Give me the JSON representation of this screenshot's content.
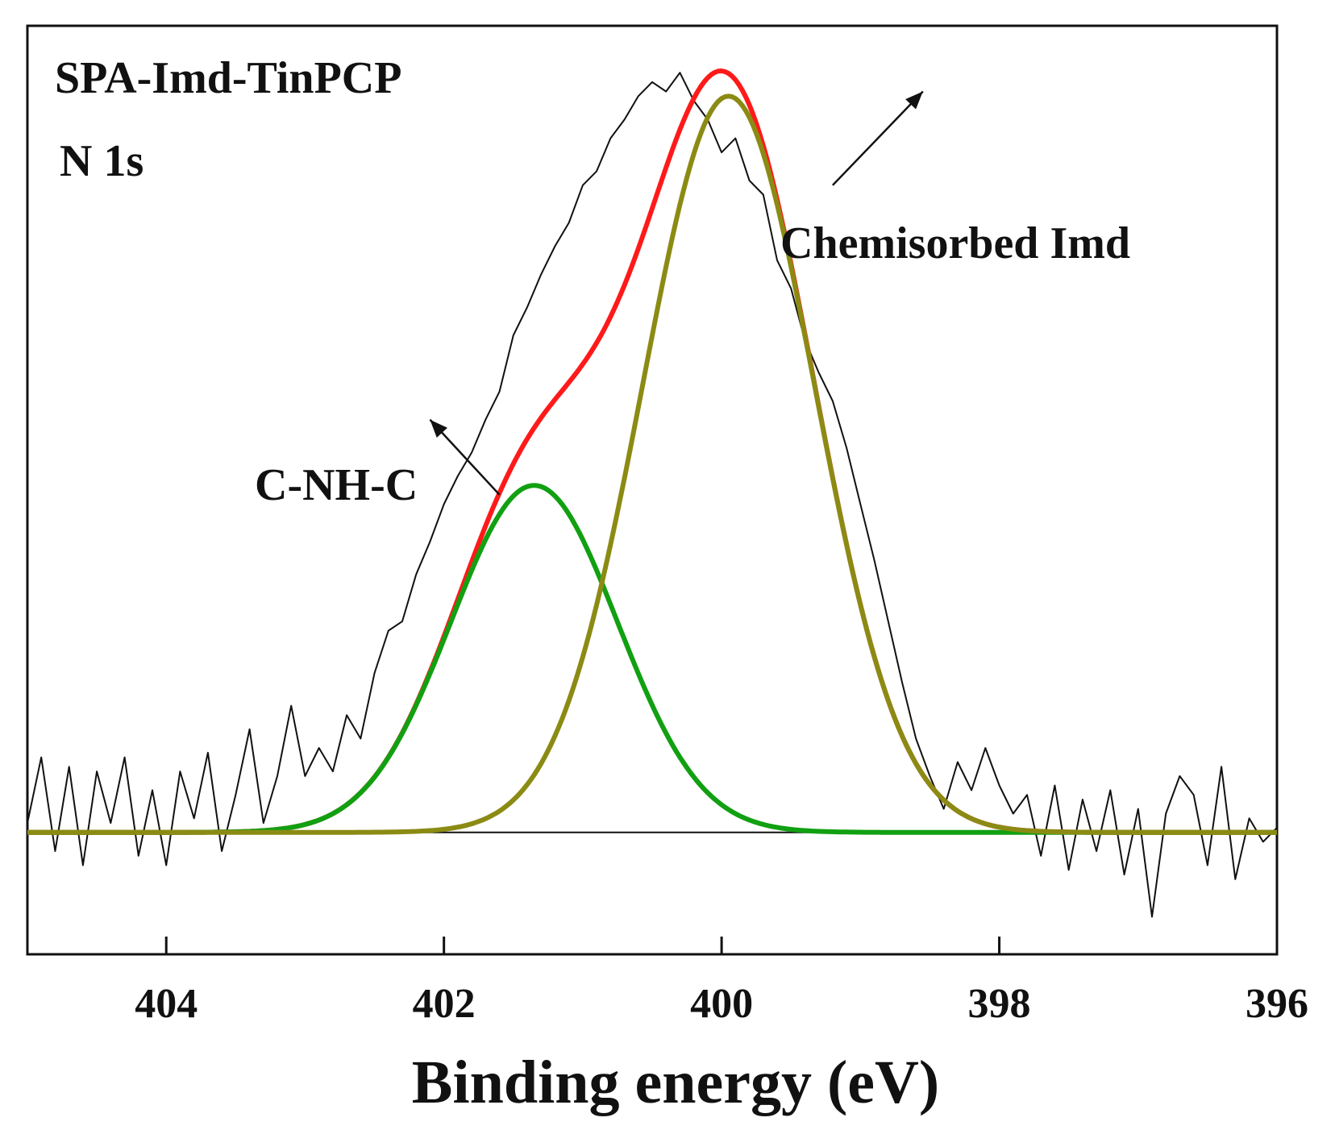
{
  "chart_data": {
    "type": "line",
    "title": "SPA-Imd-TinPCP",
    "subtitle": "N 1s",
    "xlabel": "Binding energy (eV)",
    "ylabel": "",
    "xlim": [
      405,
      396
    ],
    "x_reversed": true,
    "ylim": [
      -0.26,
      1.72
    ],
    "y_ticks_shown": false,
    "grid": false,
    "x_ticks": [
      {
        "value": 404,
        "label": "404"
      },
      {
        "value": 402,
        "label": "402"
      },
      {
        "value": 400,
        "label": "400"
      },
      {
        "value": 398,
        "label": "398"
      },
      {
        "value": 396,
        "label": "396"
      }
    ],
    "colors": {
      "raw": "#111111",
      "envelope": "#ff1a1a",
      "c_nh_c": "#11a011",
      "imd": "#8b8b14",
      "baseline": "#111111"
    },
    "series": [
      {
        "role": "raw",
        "color": "#111111",
        "x": [
          405.0,
          404.9,
          404.8,
          404.7,
          404.6,
          404.5,
          404.4,
          404.3,
          404.2,
          404.1,
          404.0,
          403.9,
          403.8,
          403.7,
          403.6,
          403.5,
          403.4,
          403.3,
          403.2,
          403.1,
          403.0,
          402.9,
          402.8,
          402.7,
          402.6,
          402.5,
          402.4,
          402.3,
          402.2,
          402.1,
          402.0,
          401.9,
          401.8,
          401.7,
          401.6,
          401.5,
          401.4,
          401.3,
          401.2,
          401.1,
          401.0,
          400.9,
          400.8,
          400.7,
          400.6,
          400.5,
          400.4,
          400.3,
          400.2,
          400.1,
          400.0,
          399.9,
          399.8,
          399.7,
          399.6,
          399.5,
          399.4,
          399.3,
          399.2,
          399.1,
          399.0,
          398.9,
          398.8,
          398.7,
          398.6,
          398.5,
          398.4,
          398.3,
          398.2,
          398.1,
          398.0,
          397.9,
          397.8,
          397.7,
          397.6,
          397.5,
          397.4,
          397.3,
          397.2,
          397.1,
          397.0,
          396.9,
          396.8,
          396.7,
          396.6,
          396.5,
          396.4,
          396.3,
          396.2,
          396.1,
          396.0
        ],
        "y": [
          0.02,
          0.16,
          -0.04,
          0.14,
          -0.07,
          0.13,
          0.02,
          0.16,
          -0.05,
          0.09,
          -0.07,
          0.13,
          0.03,
          0.17,
          -0.04,
          0.08,
          0.22,
          0.02,
          0.12,
          0.27,
          0.12,
          0.18,
          0.13,
          0.25,
          0.2,
          0.34,
          0.43,
          0.45,
          0.55,
          0.62,
          0.7,
          0.76,
          0.81,
          0.88,
          0.94,
          1.06,
          1.12,
          1.19,
          1.25,
          1.3,
          1.38,
          1.41,
          1.48,
          1.52,
          1.57,
          1.6,
          1.58,
          1.62,
          1.56,
          1.52,
          1.45,
          1.48,
          1.39,
          1.36,
          1.22,
          1.16,
          1.05,
          0.98,
          0.92,
          0.82,
          0.7,
          0.58,
          0.45,
          0.32,
          0.2,
          0.12,
          0.05,
          0.15,
          0.09,
          0.18,
          0.1,
          0.04,
          0.08,
          -0.05,
          0.1,
          -0.08,
          0.07,
          -0.04,
          0.09,
          -0.09,
          0.05,
          -0.18,
          0.04,
          0.12,
          0.08,
          -0.07,
          0.14,
          -0.1,
          0.03,
          -0.02,
          0.01
        ]
      },
      {
        "role": "envelope",
        "color": "#ff1a1a",
        "peaks": [
          {
            "center": 401.35,
            "amplitude": 0.74,
            "sigma": 0.6
          },
          {
            "center": 399.95,
            "amplitude": 1.57,
            "sigma": 0.62
          }
        ]
      },
      {
        "name": "C-NH-C",
        "role": "component",
        "color": "#11a011",
        "peak": {
          "center": 401.35,
          "amplitude": 0.74,
          "sigma": 0.6
        }
      },
      {
        "name": "Chemisorbed Imd",
        "role": "component",
        "color": "#8b8b14",
        "peak": {
          "center": 399.95,
          "amplitude": 1.57,
          "sigma": 0.62
        }
      }
    ],
    "annotations": [
      {
        "text": "Chemisorbed Imd",
        "points_to": {
          "x": 399.2,
          "y": 1.38
        },
        "label_at": {
          "x": 398.05,
          "y": 1.63
        }
      },
      {
        "text": "C-NH-C",
        "points_to": {
          "x": 401.6,
          "y": 0.72
        },
        "label_at": {
          "x": 402.15,
          "y": 0.95
        }
      }
    ]
  }
}
